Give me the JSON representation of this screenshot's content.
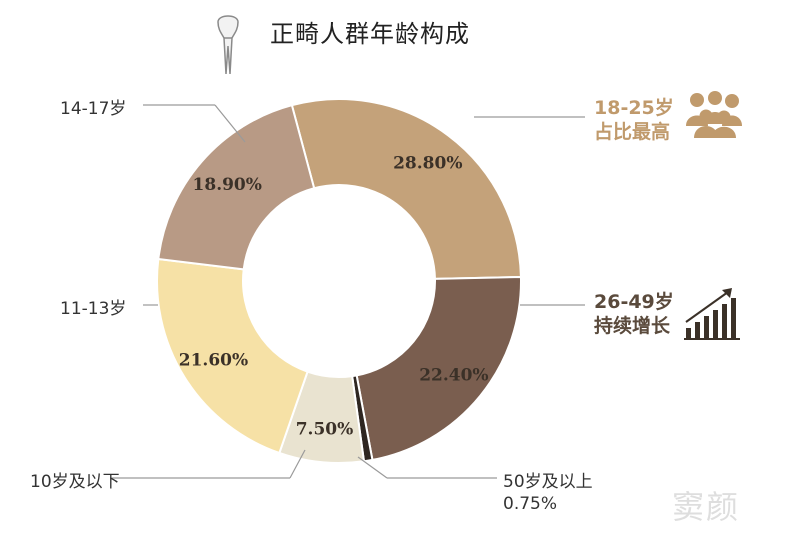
{
  "title": "正畸人群年龄构成",
  "highlights": {
    "young": {
      "range": "18-25岁",
      "note": "占比最高",
      "icon": "people-group-icon"
    },
    "adult": {
      "range": "26-49岁",
      "note": "持续增长",
      "icon": "growth-bars-icon"
    }
  },
  "title_icon": "tooth-icon",
  "watermark": "窦颜",
  "colors": {
    "s18_25": "#c4a27a",
    "s26_49": "#7a5e4f",
    "s50": "#2e2621",
    "s10": "#e9e3d0",
    "s11_13": "#f6e1a6",
    "s14_17": "#b89a85",
    "accent": "#c09a6c"
  },
  "chart_data": {
    "type": "pie",
    "donut": true,
    "slices": [
      {
        "key": "s18_25",
        "category": "18-25岁",
        "value": 28.8,
        "value_label": "28.80%"
      },
      {
        "key": "s26_49",
        "category": "26-49岁",
        "value": 22.4,
        "value_label": "22.40%"
      },
      {
        "key": "s50",
        "category": "50岁及以上",
        "value": 0.75,
        "value_label": "0.75%"
      },
      {
        "key": "s10",
        "category": "10岁及以下",
        "value": 7.5,
        "value_label": "7.50%"
      },
      {
        "key": "s11_13",
        "category": "11-13岁",
        "value": 21.6,
        "value_label": "21.60%"
      },
      {
        "key": "s14_17",
        "category": "14-17岁",
        "value": 18.9,
        "value_label": "18.90%"
      }
    ]
  }
}
